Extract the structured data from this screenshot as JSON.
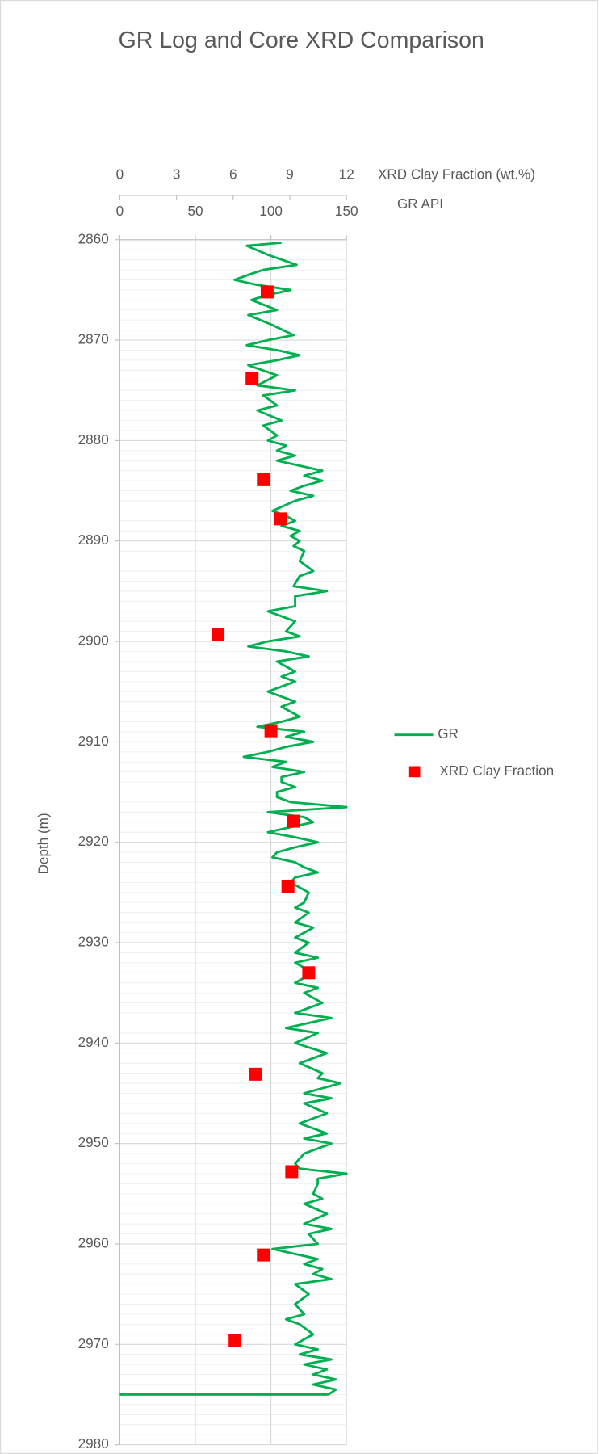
{
  "chart_data": {
    "type": "well-log",
    "title": "GR Log and Core XRD Comparison",
    "ylabel": "Depth (m)",
    "ylim": [
      2860,
      2980
    ],
    "yticks": [
      2860,
      2870,
      2880,
      2890,
      2900,
      2910,
      2920,
      2930,
      2940,
      2950,
      2960,
      2970,
      2980
    ],
    "y_reversed": true,
    "grid": true,
    "minor_grid": true,
    "xlabel": "GR API",
    "xlim": [
      0,
      150
    ],
    "xticks": [
      0,
      50,
      100,
      150
    ],
    "x2label": "XRD Clay Fraction (wt.%)",
    "x2lim": [
      0,
      12
    ],
    "x2ticks": [
      0,
      3,
      6,
      9,
      12
    ],
    "legend": "right",
    "series": [
      {
        "name": "GR",
        "color": "#00b050",
        "axis": "x",
        "depth": [
          2860.3,
          2860.6,
          2861.5,
          2862.5,
          2863,
          2863.5,
          2864,
          2864.5,
          2865,
          2865.5,
          2866,
          2867,
          2867.5,
          2868.5,
          2869.5,
          2870,
          2870.5,
          2871,
          2871.5,
          2872,
          2872.5,
          2873.5,
          2874.5,
          2875,
          2875.5,
          2876.5,
          2877,
          2878,
          2878.5,
          2879.5,
          2880,
          2880.5,
          2881,
          2881.5,
          2882,
          2882.5,
          2883,
          2883.5,
          2884,
          2884.5,
          2885,
          2885.5,
          2886,
          2887,
          2887.5,
          2888,
          2888.5,
          2889,
          2889.5,
          2890,
          2890.5,
          2891,
          2892,
          2893,
          2893.5,
          2894.5,
          2895,
          2895.5,
          2896.5,
          2897,
          2898,
          2899,
          2899.5,
          2900,
          2900.5,
          2901,
          2901.5,
          2902,
          2903,
          2903.5,
          2904,
          2905,
          2905.5,
          2906,
          2906.5,
          2907.5,
          2908,
          2908.5,
          2909,
          2909.5,
          2910,
          2910.5,
          2911,
          2911.5,
          2912,
          2912.5,
          2913,
          2913.5,
          2914,
          2914.5,
          2915,
          2915.5,
          2916,
          2916.5,
          2917,
          2917.5,
          2918,
          2918.5,
          2919,
          2919.5,
          2920,
          2920.5,
          2921,
          2921.5,
          2922,
          2922.5,
          2923,
          2923.5,
          2924,
          2925,
          2926,
          2926.5,
          2927,
          2928,
          2928.5,
          2929.5,
          2930,
          2931,
          2931.5,
          2932,
          2933,
          2934,
          2934.5,
          2935,
          2936,
          2937,
          2937.5,
          2938,
          2938.5,
          2939,
          2940,
          2941,
          2942,
          2943,
          2943.5,
          2944,
          2945,
          2945.5,
          2946,
          2947,
          2948,
          2949,
          2949.5,
          2950,
          2951,
          2952,
          2952.5,
          2953,
          2953.5,
          2954,
          2955,
          2955.5,
          2956,
          2957,
          2958,
          2958.5,
          2959,
          2960,
          2960.5,
          2961,
          2961.5,
          2962,
          2962.5,
          2963,
          2963.5,
          2964,
          2965,
          2966,
          2967,
          2967.5,
          2968,
          2969,
          2970,
          2970.5,
          2971,
          2971.5,
          2972,
          2972.5,
          2973,
          2973.5,
          2974,
          2974.5,
          2975,
          2975
        ],
        "values": [
          107,
          84,
          98,
          117,
          95,
          85,
          76,
          91,
          113,
          98,
          87,
          104,
          85,
          101,
          115,
          98,
          84,
          104,
          119,
          104,
          85,
          104,
          91,
          116,
          95,
          104,
          91,
          107,
          95,
          104,
          98,
          110,
          104,
          116,
          104,
          119,
          134,
          122,
          134,
          122,
          113,
          128,
          116,
          101,
          110,
          116,
          107,
          119,
          113,
          119,
          115,
          122,
          119,
          128,
          119,
          115,
          137,
          116,
          116,
          98,
          116,
          110,
          119,
          98,
          85,
          110,
          125,
          104,
          116,
          107,
          116,
          98,
          107,
          116,
          107,
          119,
          107,
          91,
          122,
          110,
          128,
          110,
          98,
          82,
          110,
          101,
          122,
          107,
          107,
          116,
          104,
          104,
          113,
          150,
          98,
          122,
          128,
          113,
          98,
          116,
          131,
          116,
          104,
          101,
          116,
          122,
          131,
          116,
          113,
          125,
          122,
          116,
          125,
          116,
          128,
          116,
          125,
          116,
          131,
          116,
          128,
          116,
          131,
          122,
          134,
          116,
          140,
          125,
          110,
          131,
          116,
          137,
          119,
          134,
          131,
          146,
          122,
          140,
          122,
          137,
          119,
          137,
          122,
          140,
          122,
          116,
          119,
          150,
          131,
          131,
          128,
          134,
          122,
          137,
          122,
          140,
          125,
          131,
          101,
          116,
          131,
          122,
          134,
          128,
          140,
          116,
          125,
          116,
          122,
          110,
          119,
          128,
          116,
          131,
          119,
          140,
          122,
          137,
          128,
          143,
          128,
          143,
          138,
          0
        ]
      },
      {
        "name": "XRD Clay Fraction",
        "color": "#ff0000",
        "axis": "x2",
        "depth": [
          2865.2,
          2873.8,
          2883.9,
          2887.8,
          2899.3,
          2908.9,
          2917.9,
          2924.4,
          2933.0,
          2943.1,
          2952.8,
          2961.1,
          2969.6
        ],
        "values": [
          7.8,
          7.0,
          7.6,
          8.5,
          5.2,
          8.0,
          9.2,
          8.9,
          10.0,
          7.2,
          9.1,
          7.6,
          6.1
        ]
      }
    ]
  }
}
